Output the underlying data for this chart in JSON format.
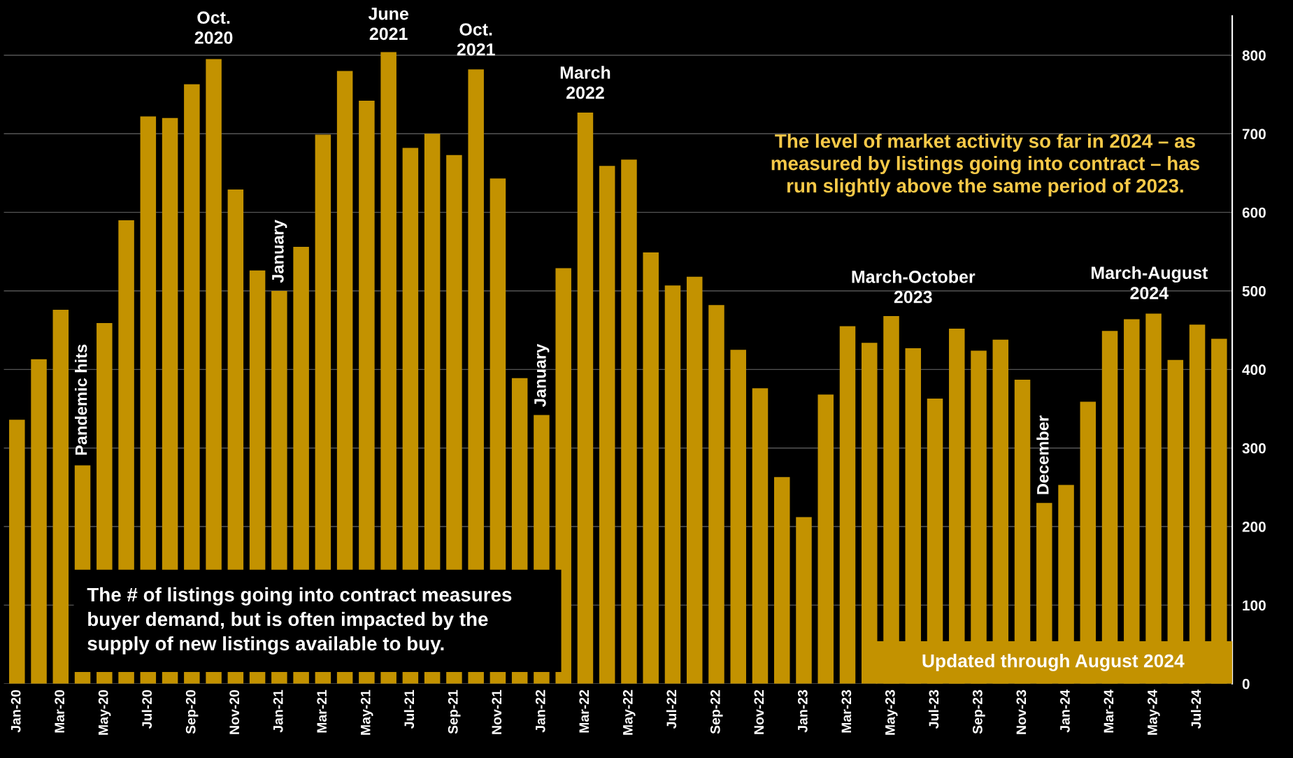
{
  "chart_data": {
    "type": "bar",
    "categories": [
      "Jan-20",
      null,
      "Mar-20",
      null,
      "May-20",
      null,
      "Jul-20",
      null,
      "Sep-20",
      null,
      "Nov-20",
      null,
      "Jan-21",
      null,
      "Mar-21",
      null,
      "May-21",
      null,
      "Jul-21",
      null,
      "Sep-21",
      null,
      "Nov-21",
      null,
      "Jan-22",
      null,
      "Mar-22",
      null,
      "May-22",
      null,
      "Jul-22",
      null,
      "Sep-22",
      null,
      "Nov-22",
      null,
      "Jan-23",
      null,
      "Mar-23",
      null,
      "May-23",
      null,
      "Jul-23",
      null,
      "Sep-23",
      null,
      "Nov-23",
      null,
      "Jan-24",
      null,
      "Mar-24",
      null,
      "May-24",
      null,
      "Jul-24",
      null
    ],
    "values": [
      336,
      413,
      476,
      278,
      459,
      590,
      722,
      720,
      763,
      795,
      629,
      526,
      500,
      556,
      699,
      780,
      742,
      804,
      682,
      700,
      673,
      782,
      643,
      389,
      342,
      529,
      727,
      659,
      667,
      549,
      507,
      518,
      482,
      425,
      376,
      263,
      212,
      368,
      455,
      434,
      468,
      427,
      363,
      452,
      424,
      438,
      387,
      230,
      253,
      359,
      449,
      464,
      471,
      412,
      457,
      439
    ],
    "color": "#c39200",
    "ylim": [
      0,
      850
    ],
    "yticks": [
      0,
      100,
      200,
      300,
      400,
      500,
      600,
      700,
      800
    ],
    "grid": "y",
    "annotations": [
      "Pandemic hits",
      "Oct.\n2020",
      "January",
      "June\n2021",
      "Oct.\n2021",
      "January",
      "March\n2022",
      "March-October\n2023",
      "December",
      "March-August\n2024",
      "The level of market activity so far in 2024 – as\nmeasured by listings going into contract – has\nrun slightly above the same period of 2023.",
      "The # of listings going into contract measures\nbuyer demand, but is often impacted by the\nsupply of new listings available to buy.",
      "Updated through August 2024"
    ]
  }
}
